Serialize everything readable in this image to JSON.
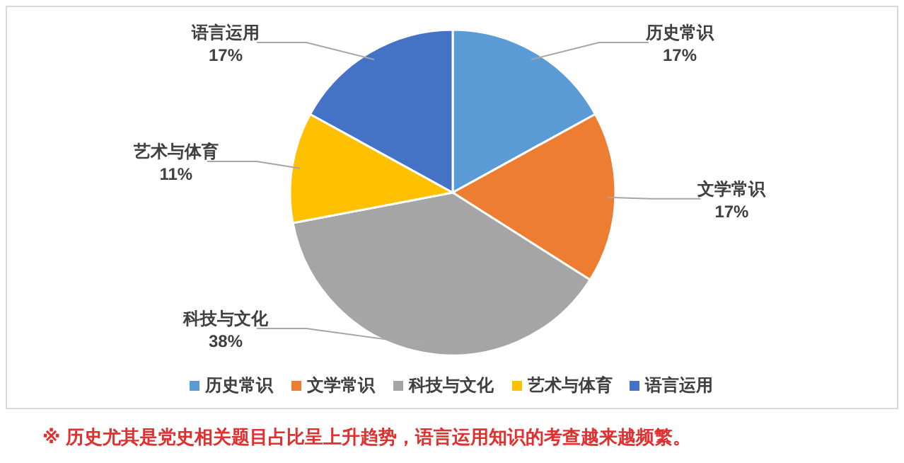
{
  "chart_data": {
    "type": "pie",
    "categories": [
      "历史常识",
      "文学常识",
      "科技与文化",
      "艺术与体育",
      "语言运用"
    ],
    "values": [
      17,
      17,
      38,
      11,
      17
    ],
    "colors": [
      "#5b9bd5",
      "#ed7d31",
      "#a5a5a5",
      "#ffc000",
      "#4472c4"
    ],
    "value_labels": [
      "17%",
      "17%",
      "38%",
      "11%",
      "17%"
    ],
    "legend": "bottom",
    "annotations": [
      "※ 历史尤其是党史相关题目占比呈上升趋势，语言运用知识的考查越来越频繁。"
    ]
  }
}
